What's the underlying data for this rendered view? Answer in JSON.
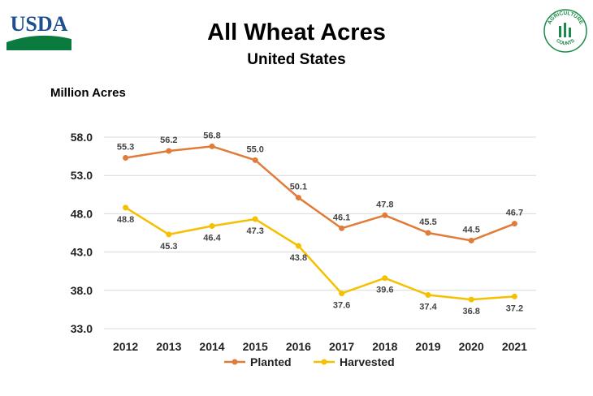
{
  "header": {
    "title": "All Wheat Acres",
    "subtitle": "United States",
    "left_logo": {
      "name": "usda-logo",
      "text": "USDA",
      "color": "#1d4f91",
      "accent": "#0a7a3e"
    },
    "right_logo": {
      "name": "agriculture-counts-seal",
      "text_top": "AGRICULTURE",
      "text_bottom": "COUNTS",
      "color": "#1a8a4a"
    }
  },
  "chart_data": {
    "type": "line",
    "ylabel": "Million Acres",
    "xlabel": "",
    "categories": [
      "2012",
      "2013",
      "2014",
      "2015",
      "2016",
      "2017",
      "2018",
      "2019",
      "2020",
      "2021"
    ],
    "ylim": [
      33.0,
      58.0
    ],
    "yticks": [
      "58.0",
      "53.0",
      "48.0",
      "43.0",
      "38.0",
      "33.0"
    ],
    "grid": true,
    "legend_position": "bottom",
    "series": [
      {
        "name": "Planted",
        "color": "#e07b39",
        "values": [
          55.3,
          56.2,
          56.8,
          55.0,
          50.1,
          46.1,
          47.8,
          45.5,
          44.5,
          46.7
        ],
        "labels": [
          "55.3",
          "56.2",
          "56.8",
          "55.0",
          "50.1",
          "46.1",
          "47.8",
          "45.5",
          "44.5",
          "46.7"
        ]
      },
      {
        "name": "Harvested",
        "color": "#f5c000",
        "values": [
          48.8,
          45.3,
          46.4,
          47.3,
          43.8,
          37.6,
          39.6,
          37.4,
          36.8,
          37.2
        ],
        "labels": [
          "48.8",
          "45.3",
          "46.4",
          "47.3",
          "43.8",
          "37.6",
          "39.6",
          "37.4",
          "36.8",
          "37.2"
        ]
      }
    ]
  }
}
